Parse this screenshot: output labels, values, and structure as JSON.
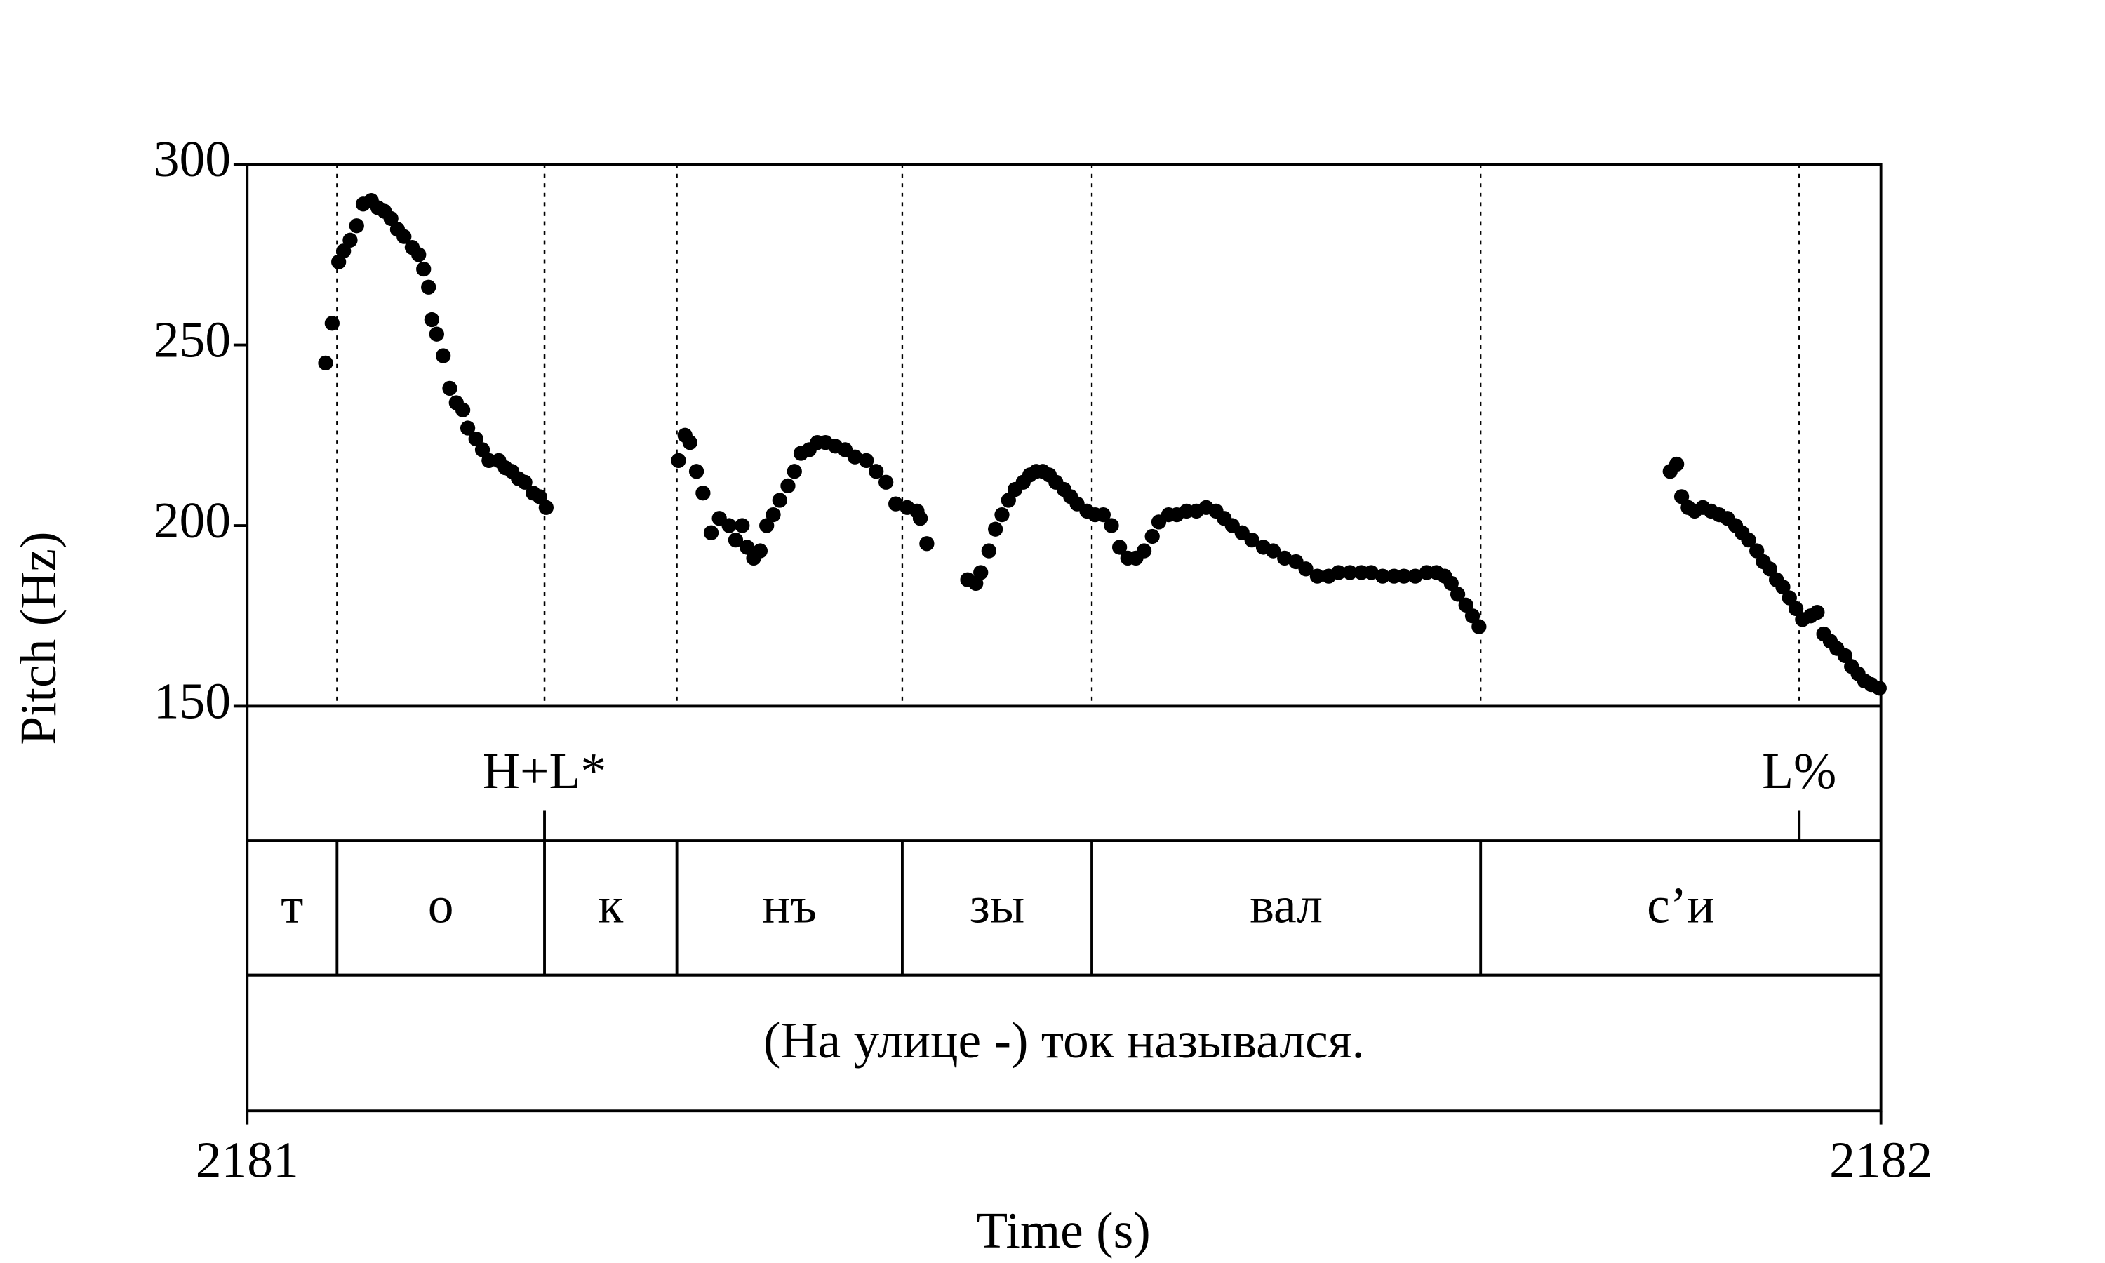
{
  "chart_data": {
    "type": "scatter",
    "xlabel": "Time (s)",
    "ylabel": "Pitch (Hz)",
    "color": "#000000",
    "xlim": [
      2181,
      2182
    ],
    "xticks": [
      2181,
      2182
    ],
    "ylim": [
      150,
      300
    ],
    "yticks": [
      150,
      200,
      250,
      300
    ],
    "x": [
      2181.048,
      2181.052,
      2181.056,
      2181.059,
      2181.063,
      2181.067,
      2181.071,
      2181.076,
      2181.08,
      2181.084,
      2181.088,
      2181.092,
      2181.096,
      2181.101,
      2181.105,
      2181.108,
      2181.111,
      2181.113,
      2181.116,
      2181.12,
      2181.124,
      2181.128,
      2181.132,
      2181.135,
      2181.14,
      2181.144,
      2181.148,
      2181.154,
      2181.158,
      2181.162,
      2181.166,
      2181.17,
      2181.175,
      2181.179,
      2181.183,
      2181.264,
      2181.268,
      2181.271,
      2181.275,
      2181.279,
      2181.284,
      2181.289,
      2181.295,
      2181.299,
      2181.303,
      2181.306,
      2181.31,
      2181.314,
      2181.318,
      2181.322,
      2181.326,
      2181.331,
      2181.335,
      2181.339,
      2181.344,
      2181.349,
      2181.354,
      2181.36,
      2181.366,
      2181.372,
      2181.379,
      2181.385,
      2181.391,
      2181.397,
      2181.404,
      2181.41,
      2181.412,
      2181.416,
      2181.441,
      2181.446,
      2181.449,
      2181.454,
      2181.458,
      2181.462,
      2181.466,
      2181.47,
      2181.475,
      2181.479,
      2181.483,
      2181.487,
      2181.491,
      2181.495,
      2181.5,
      2181.504,
      2181.508,
      2181.514,
      2181.519,
      2181.524,
      2181.529,
      2181.534,
      2181.539,
      2181.544,
      2181.549,
      2181.554,
      2181.558,
      2181.564,
      2181.569,
      2181.575,
      2181.581,
      2181.587,
      2181.593,
      2181.598,
      2181.603,
      2181.609,
      2181.615,
      2181.622,
      2181.628,
      2181.635,
      2181.642,
      2181.648,
      2181.655,
      2181.662,
      2181.668,
      2181.675,
      2181.682,
      2181.688,
      2181.695,
      2181.702,
      2181.708,
      2181.715,
      2181.722,
      2181.728,
      2181.733,
      2181.737,
      2181.741,
      2181.746,
      2181.75,
      2181.754,
      2181.871,
      2181.875,
      2181.878,
      2181.882,
      2181.886,
      2181.891,
      2181.896,
      2181.901,
      2181.906,
      2181.911,
      2181.915,
      2181.919,
      2181.924,
      2181.928,
      2181.932,
      2181.936,
      2181.94,
      2181.944,
      2181.948,
      2181.952,
      2181.957,
      2181.961,
      2181.965,
      2181.969,
      2181.973,
      2181.978,
      2181.982,
      2181.986,
      2181.99,
      2181.994,
      2181.999
    ],
    "values": [
      245,
      256,
      273,
      276,
      279,
      283,
      289,
      290,
      288,
      287,
      285,
      282,
      280,
      277,
      275,
      271,
      266,
      257,
      253,
      247,
      238,
      234,
      232,
      227,
      224,
      221,
      218,
      218,
      216,
      215,
      213,
      212,
      209,
      208,
      205,
      218,
      225,
      223,
      215,
      209,
      198,
      202,
      200,
      196,
      200,
      194,
      191,
      193,
      200,
      203,
      207,
      211,
      215,
      220,
      221,
      223,
      223,
      222,
      221,
      219,
      218,
      215,
      212,
      206,
      205,
      204,
      202,
      195,
      185,
      184,
      187,
      193,
      199,
      203,
      207,
      210,
      212,
      214,
      215,
      215,
      214,
      212,
      210,
      208,
      206,
      204,
      203,
      203,
      200,
      194,
      191,
      191,
      193,
      197,
      201,
      203,
      203,
      204,
      204,
      205,
      204,
      202,
      200,
      198,
      196,
      194,
      193,
      191,
      190,
      188,
      186,
      186,
      187,
      187,
      187,
      187,
      186,
      186,
      186,
      186,
      187,
      187,
      186,
      184,
      181,
      178,
      175,
      172,
      215,
      217,
      208,
      205,
      204,
      205,
      204,
      203,
      202,
      200,
      198,
      196,
      193,
      190,
      188,
      185,
      183,
      180,
      177,
      174,
      175,
      176,
      170,
      168,
      166,
      164,
      161,
      159,
      157,
      156,
      155
    ],
    "tiers": [
      {
        "points": [
          {
            "time": 2181.182,
            "label": "H+L*"
          },
          {
            "time": 2181.95,
            "label": "L%"
          }
        ]
      },
      {
        "intervals": [
          {
            "start": 2181,
            "end": 2181.055,
            "label": "т"
          },
          {
            "start": 2181.055,
            "end": 2181.182,
            "label": "о"
          },
          {
            "start": 2181.182,
            "end": 2181.263,
            "label": "к"
          },
          {
            "start": 2181.263,
            "end": 2181.401,
            "label": "нъ"
          },
          {
            "start": 2181.401,
            "end": 2181.517,
            "label": "зы"
          },
          {
            "start": 2181.517,
            "end": 2181.755,
            "label": "вал"
          },
          {
            "start": 2181.755,
            "end": 2182,
            "label": "с’и"
          }
        ]
      },
      {
        "intervals": [
          {
            "start": 2181,
            "end": 2182,
            "label": "(На улице -) ток назывался."
          }
        ]
      }
    ]
  }
}
